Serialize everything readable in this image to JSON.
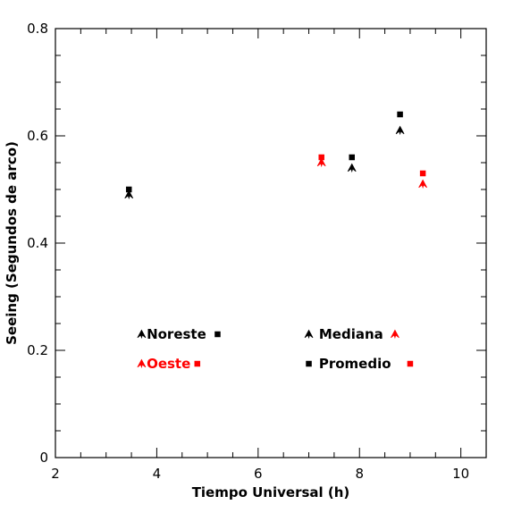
{
  "chart_data": {
    "type": "scatter",
    "xlabel": "Tiempo Universal (h)",
    "ylabel": "Seeing (Segundos de arco)",
    "xlim": [
      2,
      10.5
    ],
    "ylim": [
      0,
      0.8
    ],
    "xticks": [
      2,
      4,
      6,
      8,
      10
    ],
    "yticks": [
      0,
      0.2,
      0.4,
      0.6,
      0.8
    ],
    "xtick_labels": [
      "2",
      "4",
      "6",
      "8",
      "10"
    ],
    "ytick_labels": [
      "0",
      "0.2",
      "0.4",
      "0.6",
      "0.8"
    ],
    "grid": false,
    "legend_position": "lower-inside",
    "colors": {
      "noreste": "#000000",
      "oeste": "#ff0000"
    },
    "series": [
      {
        "name": "Noreste",
        "statistic": "Mediana",
        "marker": "triangle",
        "color": "#000000",
        "points": [
          [
            3.45,
            0.49
          ],
          [
            7.85,
            0.54
          ],
          [
            8.8,
            0.61
          ]
        ]
      },
      {
        "name": "Noreste",
        "statistic": "Promedio",
        "marker": "square",
        "color": "#000000",
        "points": [
          [
            3.45,
            0.5
          ],
          [
            7.85,
            0.56
          ],
          [
            8.8,
            0.64
          ]
        ]
      },
      {
        "name": "Oeste",
        "statistic": "Mediana",
        "marker": "triangle",
        "color": "#ff0000",
        "points": [
          [
            7.25,
            0.55
          ],
          [
            9.25,
            0.51
          ]
        ]
      },
      {
        "name": "Oeste",
        "statistic": "Promedio",
        "marker": "square",
        "color": "#ff0000",
        "points": [
          [
            7.25,
            0.56
          ],
          [
            9.25,
            0.53
          ]
        ]
      }
    ],
    "legend": {
      "site": [
        {
          "label": "Noreste",
          "color": "#000000"
        },
        {
          "label": "Oeste",
          "color": "#ff0000"
        }
      ],
      "statistic": [
        {
          "label": "Mediana",
          "marker": "triangle"
        },
        {
          "label": "Promedio",
          "marker": "square"
        }
      ]
    }
  }
}
